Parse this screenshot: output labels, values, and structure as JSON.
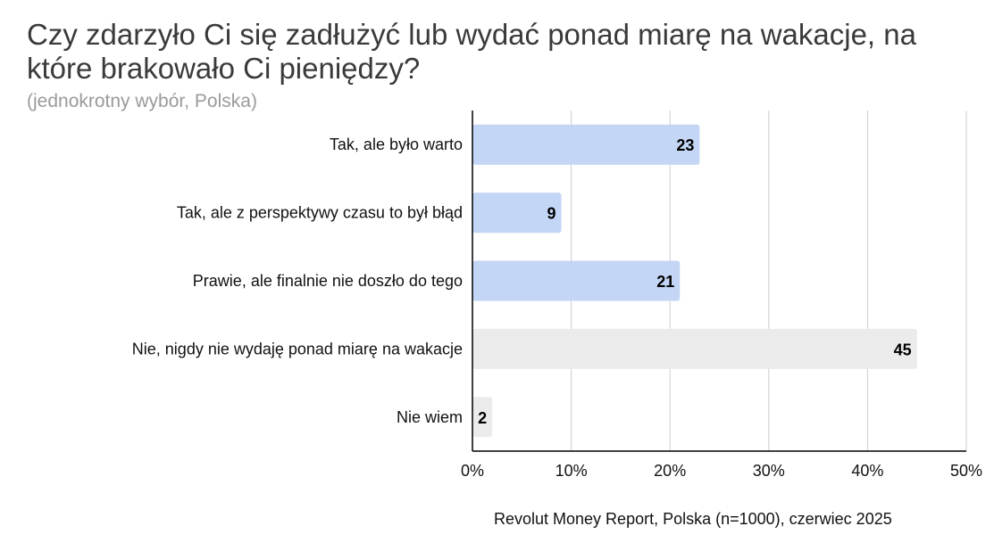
{
  "title": "Czy zdarzyło Ci się zadłużyć lub wydać ponad miarę na wakacje, na które brakowało Ci pieniędzy?",
  "subtitle": "(jednokrotny wybór, Polska)",
  "source": "Revolut Money Report, Polska (n=1000), czerwiec 2025",
  "colors": {
    "highlight": "#c3d6f5",
    "neutral": "#ebebeb",
    "grid": "#cccccc",
    "axis": "#000000"
  },
  "chart_data": {
    "type": "bar",
    "orientation": "horizontal",
    "categories": [
      "Tak, ale było warto",
      "Tak, ale z perspektywy czasu to był błąd",
      "Prawie, ale finalnie nie doszło do tego",
      "Nie, nigdy nie wydaję ponad miarę na wakacje",
      "Nie wiem"
    ],
    "values": [
      23,
      9,
      21,
      45,
      2
    ],
    "data_labels": [
      "23",
      "9",
      "21",
      "45",
      "2"
    ],
    "bar_colors": [
      "#c3d6f5",
      "#c3d6f5",
      "#c3d6f5",
      "#ebebeb",
      "#ebebeb"
    ],
    "xlim": [
      0,
      50
    ],
    "xticks": [
      0,
      10,
      20,
      30,
      40,
      50
    ],
    "xtick_labels": [
      "0%",
      "10%",
      "20%",
      "30%",
      "40%",
      "50%"
    ],
    "grid": true,
    "legend": "none"
  }
}
